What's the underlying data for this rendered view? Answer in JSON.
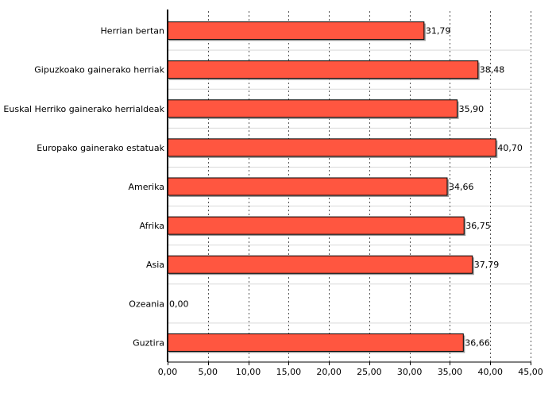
{
  "chart_data": {
    "type": "bar",
    "orientation": "horizontal",
    "categories": [
      "Herrian bertan",
      "Gipuzkoako gainerako herriak",
      "Euskal Herriko gainerako herrialdeak",
      "Europako gainerako estatuak",
      "Amerika",
      "Afrika",
      "Asia",
      "Ozeania",
      "Guztira"
    ],
    "values": [
      31.79,
      38.48,
      35.9,
      40.7,
      34.66,
      36.75,
      37.79,
      0.0,
      36.66
    ],
    "value_labels": [
      "31,79",
      "38,48",
      "35,90",
      "40,70",
      "34,66",
      "36,75",
      "37,79",
      "0,00",
      "36,66"
    ],
    "xticks": [
      0,
      5,
      10,
      15,
      20,
      25,
      30,
      35,
      40,
      45
    ],
    "xtick_labels": [
      "0,00",
      "5,00",
      "10,00",
      "15,00",
      "20,00",
      "25,00",
      "30,00",
      "35,00",
      "40,00",
      "45,00"
    ],
    "xlim": [
      0,
      45
    ],
    "grid": true,
    "bar_color": "#ff5640",
    "title": "",
    "xlabel": "",
    "ylabel": ""
  }
}
